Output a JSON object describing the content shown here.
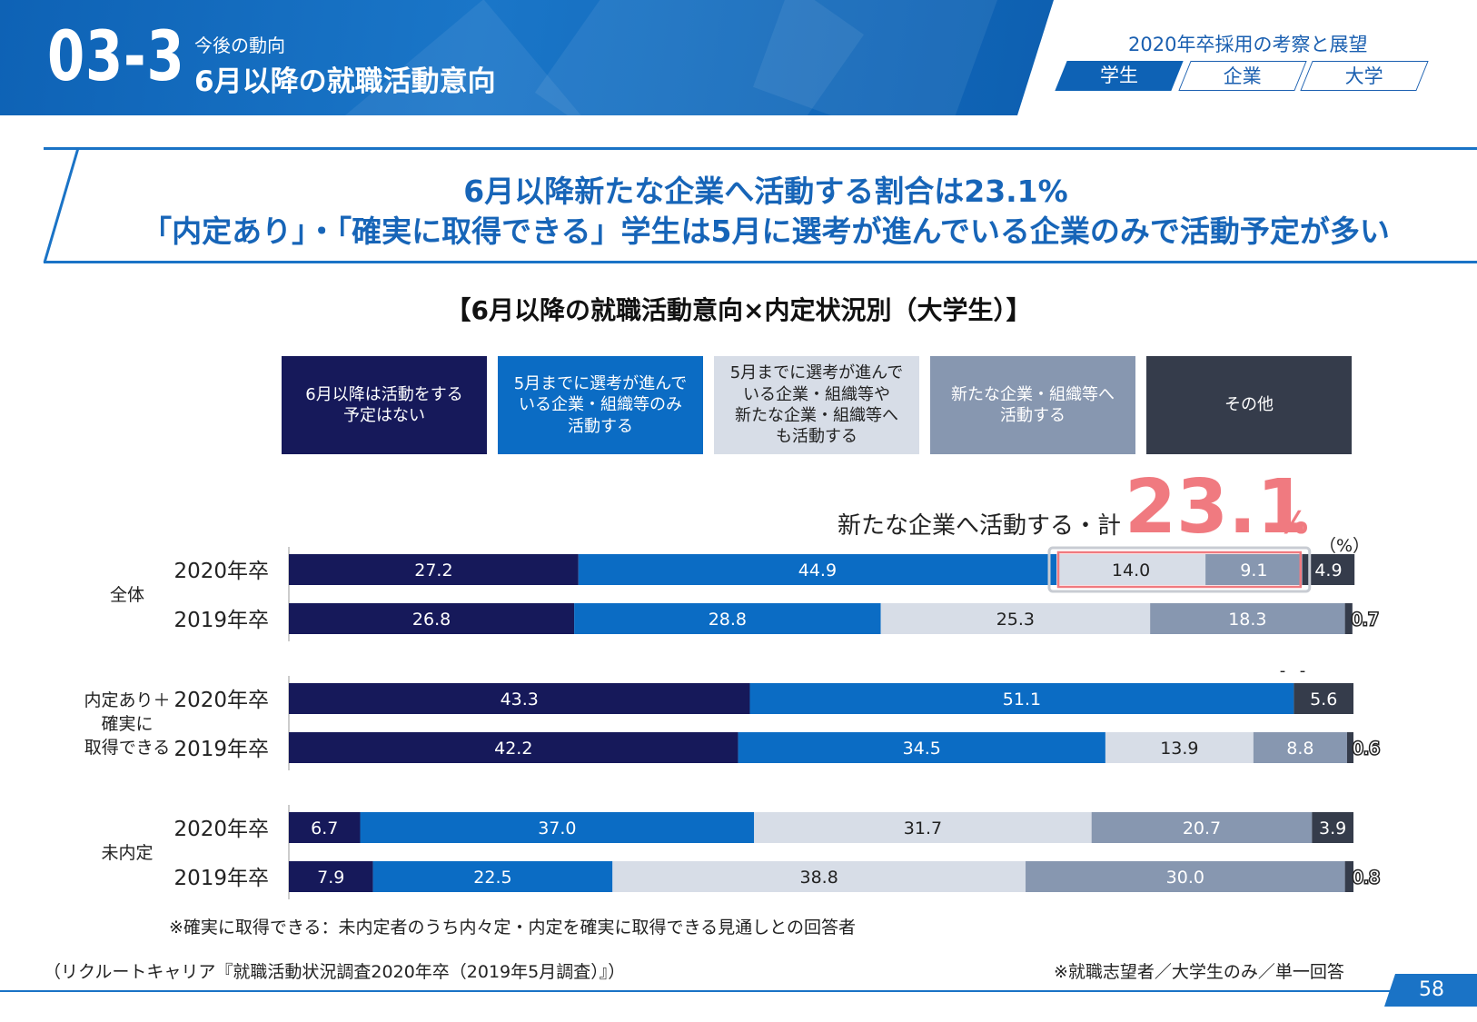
{
  "header": {
    "section_number": "03-3",
    "subtitle": "今後の動向",
    "title": "6月以降の就職活動意向",
    "report_title": "2020年卒採用の考察と展望",
    "tabs": [
      {
        "label": "学生",
        "active": true
      },
      {
        "label": "企業",
        "active": false
      },
      {
        "label": "大学",
        "active": false
      }
    ]
  },
  "headline": {
    "line1": "6月以降新たな企業へ活動する割合は23.1%",
    "line2": "「内定あり」・「確実に取得できる」学生は5月に選考が進んでいる企業のみで活動予定が多い"
  },
  "colors": {
    "brand": "#1a73c6",
    "accent_pink": "#f07a80",
    "series": [
      "#16195a",
      "#0b6cc4",
      "#d7dde7",
      "#8797b0",
      "#353c4b"
    ]
  },
  "callout": {
    "label": "新たな企業へ活動する・計",
    "value": "23.1",
    "percent": "%"
  },
  "unit_label": "（%）",
  "footnote": "※確実に取得できる：未内定者のうち内々定・内定を確実に取得できる見通しとの回答者",
  "source_note": "（リクルートキャリア『就職活動状況調査2020年卒（2019年5月調査）』）",
  "sample_note": "※就職志望者／大学生のみ／単一回答",
  "page_number": "58",
  "chart_data": {
    "type": "bar",
    "orientation": "horizontal",
    "stacked": true,
    "title": "【6月以降の就職活動意向×内定状況別（大学生）】",
    "unit": "%",
    "xlim": [
      0,
      100
    ],
    "series_names": [
      "6月以降は活動をする\n予定はない",
      "5月までに選考が進んで\nいる企業・組織等のみ\n活動する",
      "5月までに選考が進んで\nいる企業・組織等や\n新たな企業・組織等へ\nも活動する",
      "新たな企業・組織等へ\n活動する",
      "その他"
    ],
    "groups": [
      {
        "label": "全体",
        "rows": [
          {
            "label": "2020年卒",
            "values": [
              27.2,
              44.9,
              14.0,
              9.1,
              4.9
            ],
            "labels": [
              "27.2",
              "44.9",
              "14.0",
              "9.1",
              "4.9"
            ]
          },
          {
            "label": "2019年卒",
            "values": [
              26.8,
              28.8,
              25.3,
              18.3,
              0.7
            ],
            "labels": [
              "26.8",
              "28.8",
              "25.3",
              "18.3",
              "0.7"
            ]
          }
        ]
      },
      {
        "label": "内定あり＋\n確実に\n取得できる",
        "rows": [
          {
            "label": "2020年卒",
            "values": [
              43.3,
              51.1,
              0,
              0,
              5.6
            ],
            "labels": [
              "43.3",
              "51.1",
              "-",
              "-",
              "5.6"
            ]
          },
          {
            "label": "2019年卒",
            "values": [
              42.2,
              34.5,
              13.9,
              8.8,
              0.6
            ],
            "labels": [
              "42.2",
              "34.5",
              "13.9",
              "8.8",
              "0.6"
            ]
          }
        ]
      },
      {
        "label": "未内定",
        "rows": [
          {
            "label": "2020年卒",
            "values": [
              6.7,
              37.0,
              31.7,
              20.7,
              3.9
            ],
            "labels": [
              "6.7",
              "37.0",
              "31.7",
              "20.7",
              "3.9"
            ]
          },
          {
            "label": "2019年卒",
            "values": [
              7.9,
              22.5,
              38.8,
              30.0,
              0.8
            ],
            "labels": [
              "7.9",
              "22.5",
              "38.8",
              "30.0",
              "0.8"
            ]
          }
        ]
      }
    ]
  }
}
